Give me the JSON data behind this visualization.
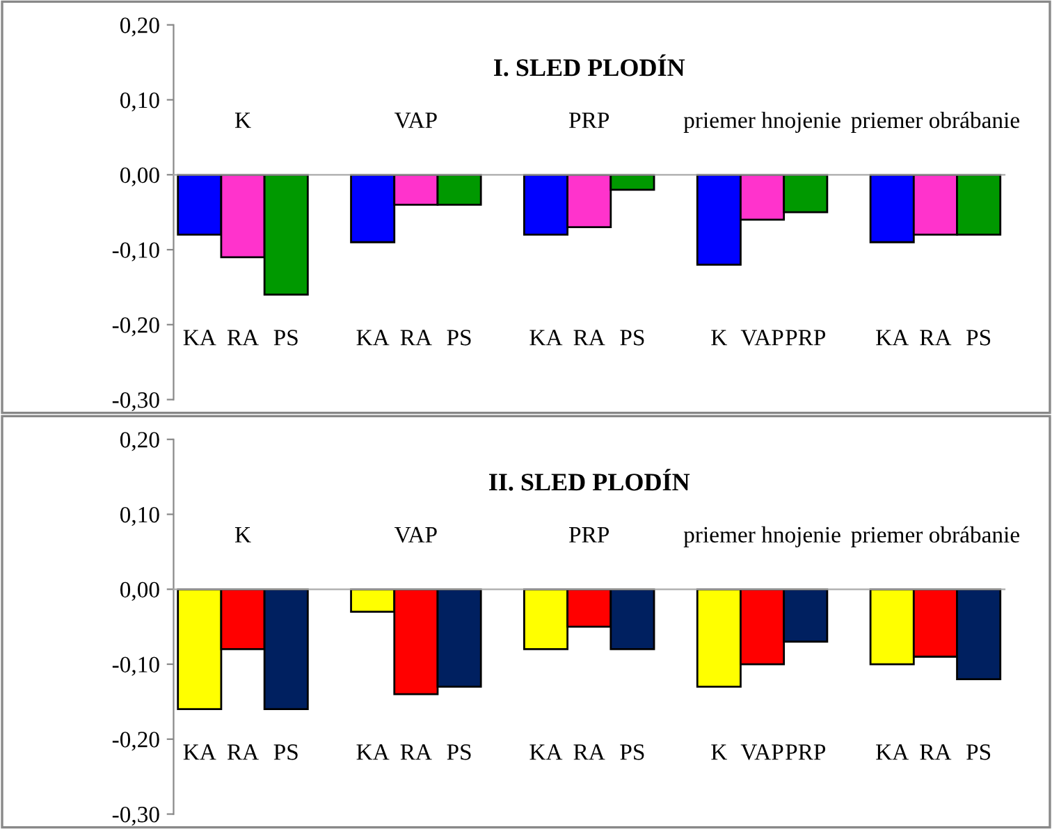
{
  "chart_data": [
    {
      "type": "bar",
      "title": "I. SLED PLODÍN",
      "categories": [
        "KA",
        "RA",
        "PS",
        null,
        "KA",
        "RA",
        "PS",
        null,
        "KA",
        "RA",
        "PS",
        null,
        "K",
        "VAP",
        "PRP",
        null,
        "KA",
        "RA",
        "PS"
      ],
      "values": [
        -0.08,
        -0.11,
        -0.16,
        null,
        -0.09,
        -0.04,
        -0.04,
        null,
        -0.08,
        -0.07,
        -0.02,
        null,
        -0.12,
        -0.06,
        -0.05,
        null,
        -0.09,
        -0.08,
        -0.08
      ],
      "colors": [
        "#0000ff",
        "#ff33cc",
        "#009900",
        null,
        "#0000ff",
        "#ff33cc",
        "#009900",
        null,
        "#0000ff",
        "#ff33cc",
        "#009900",
        null,
        "#0000ff",
        "#ff33cc",
        "#009900",
        null,
        "#0000ff",
        "#ff33cc",
        "#009900"
      ],
      "annotations": [
        "K",
        "VAP",
        "PRP",
        "priemer hnojenie",
        "priemer obrábanie"
      ],
      "ylim": [
        -0.3,
        0.2
      ],
      "yticks": [
        {
          "value": -0.3,
          "label": "-0,30"
        },
        {
          "value": -0.2,
          "label": "-0,20"
        },
        {
          "value": -0.1,
          "label": "-0,10"
        },
        {
          "value": 0,
          "label": "0,00"
        },
        {
          "value": 0.1,
          "label": "0,10"
        },
        {
          "value": 0.2,
          "label": "0,20"
        }
      ],
      "legend": false
    },
    {
      "type": "bar",
      "title": "II. SLED PLODÍN",
      "categories": [
        "KA",
        "RA",
        "PS",
        null,
        "KA",
        "RA",
        "PS",
        null,
        "KA",
        "RA",
        "PS",
        null,
        "K",
        "VAP",
        "PRP",
        null,
        "KA",
        "RA",
        "PS"
      ],
      "values": [
        -0.16,
        -0.08,
        -0.16,
        null,
        -0.03,
        -0.14,
        -0.13,
        null,
        -0.08,
        -0.05,
        -0.08,
        null,
        -0.13,
        -0.1,
        -0.07,
        null,
        -0.1,
        -0.09,
        -0.12
      ],
      "colors": [
        "#ffff00",
        "#ff0000",
        "#002060",
        null,
        "#ffff00",
        "#ff0000",
        "#002060",
        null,
        "#ffff00",
        "#ff0000",
        "#002060",
        null,
        "#ffff00",
        "#ff0000",
        "#002060",
        null,
        "#ffff00",
        "#ff0000",
        "#002060"
      ],
      "annotations": [
        "K",
        "VAP",
        "PRP",
        "priemer hnojenie",
        "priemer obrábanie"
      ],
      "ylim": [
        -0.3,
        0.2
      ],
      "yticks": [
        {
          "value": -0.3,
          "label": "-0,30"
        },
        {
          "value": -0.2,
          "label": "-0,20"
        },
        {
          "value": -0.1,
          "label": "-0,10"
        },
        {
          "value": 0,
          "label": "0,00"
        },
        {
          "value": 0.1,
          "label": "0,10"
        },
        {
          "value": 0.2,
          "label": "0,20"
        }
      ],
      "legend": false
    }
  ]
}
